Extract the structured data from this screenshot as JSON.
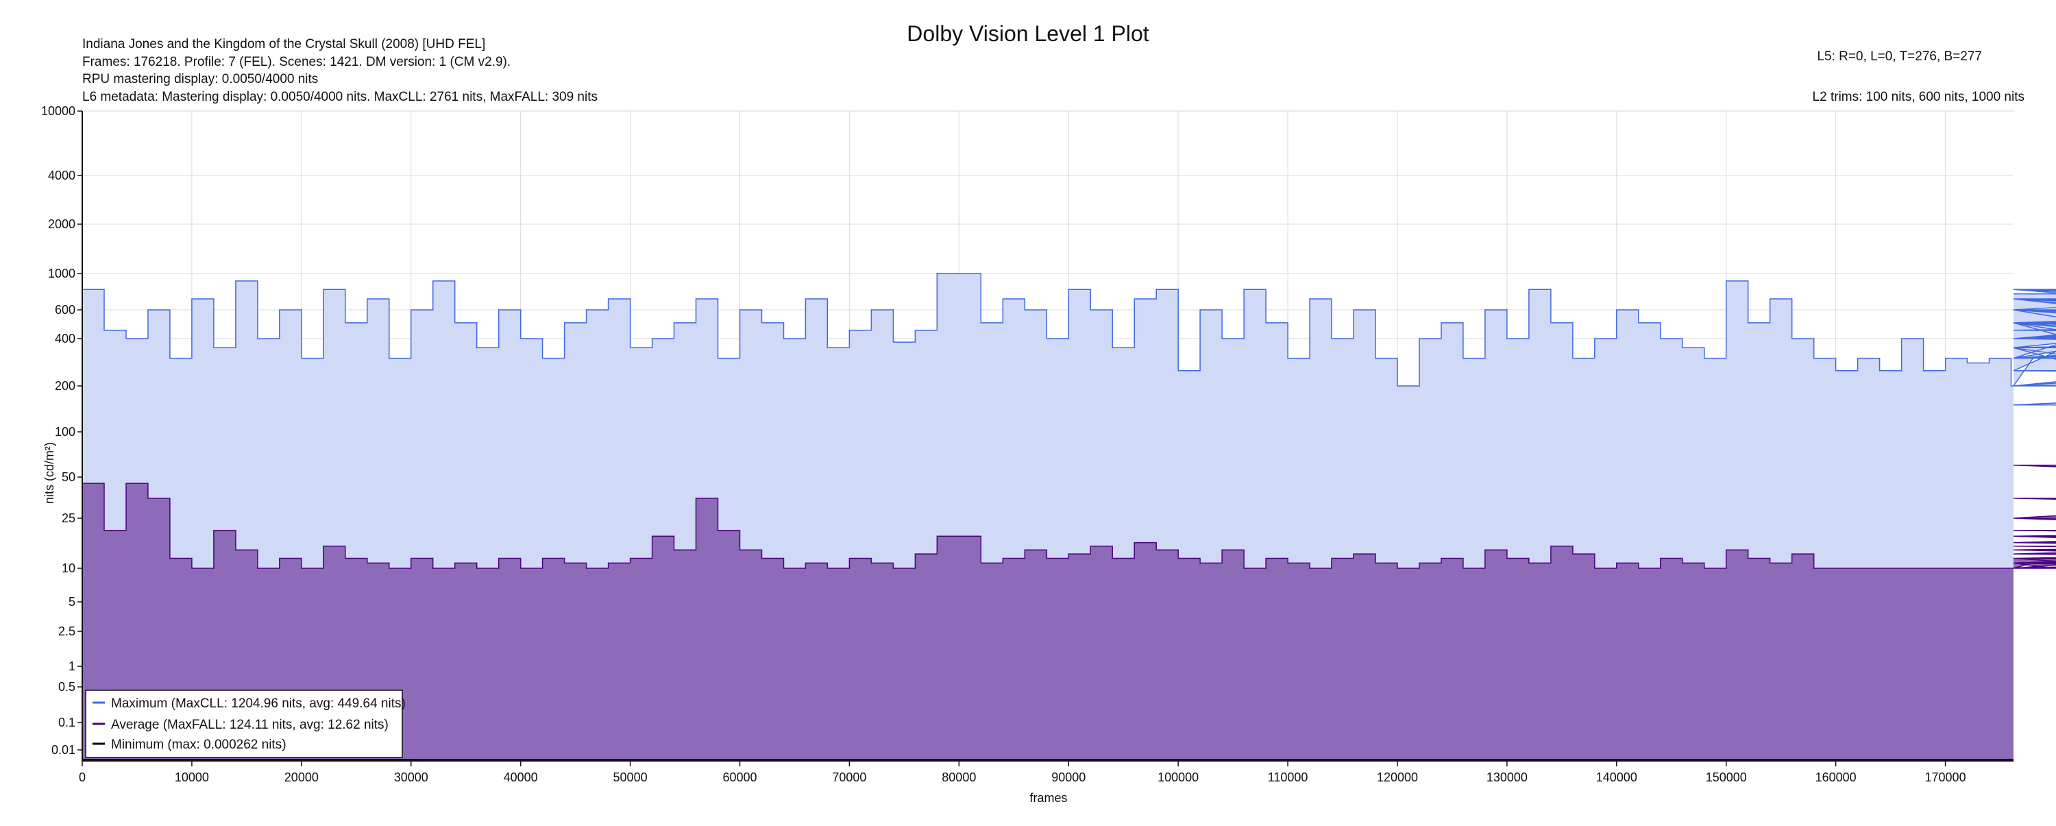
{
  "chart_data": {
    "type": "area",
    "title": "Dolby Vision Level 1 Plot",
    "xlabel": "frames",
    "ylabel": "nits (cd/m²)",
    "header_left": [
      "Indiana Jones and the Kingdom of the Crystal Skull (2008) [UHD FEL]",
      "Frames: 176218. Profile: 7 (FEL). Scenes: 1421. DM version: 1 (CM v2.9).",
      "RPU mastering display: 0.0050/4000 nits",
      "L6 metadata: Mastering display: 0.0050/4000 nits. MaxCLL: 2761 nits, MaxFALL: 309 nits"
    ],
    "header_right": [
      "L5: R=0, L=0, T=276, B=277",
      "L2 trims: 100 nits, 600 nits, 1000 nits"
    ],
    "xlim": [
      0,
      176218
    ],
    "ylim": [
      0.0001,
      10000
    ],
    "yscale": "pq",
    "x_ticks": [
      "0",
      "10000",
      "20000",
      "30000",
      "40000",
      "50000",
      "60000",
      "70000",
      "80000",
      "90000",
      "100000",
      "110000",
      "120000",
      "130000",
      "140000",
      "150000",
      "160000",
      "170000"
    ],
    "y_ticks": [
      "10000",
      "4000",
      "2000",
      "1000",
      "600",
      "400",
      "200",
      "100",
      "50",
      "25",
      "10",
      "5",
      "2.5",
      "1",
      "0.5",
      "0.1",
      "0.01"
    ],
    "grid": true,
    "legend_position": "bottom-left",
    "x_step": 2000,
    "series": [
      {
        "name": "Maximum (MaxCLL: 1204.96 nits, avg: 449.64 nits)",
        "color": "#4169e1",
        "fill": "#d0d9f5",
        "values": [
          800,
          450,
          400,
          600,
          300,
          700,
          350,
          900,
          400,
          600,
          300,
          800,
          500,
          700,
          300,
          600,
          900,
          500,
          350,
          600,
          400,
          300,
          500,
          600,
          700,
          350,
          400,
          500,
          700,
          300,
          600,
          500,
          400,
          700,
          350,
          450,
          600,
          380,
          450,
          1000,
          1000,
          500,
          700,
          600,
          400,
          800,
          600,
          350,
          700,
          800,
          250,
          600,
          400,
          800,
          500,
          300,
          700,
          400,
          600,
          300,
          200,
          400,
          500,
          300,
          600,
          400,
          800,
          500,
          300,
          400,
          600,
          500,
          400,
          350,
          300,
          900,
          500,
          700,
          400,
          300,
          250,
          300,
          250,
          400,
          250,
          300,
          280,
          300,
          200,
          300,
          300,
          350,
          250,
          500,
          300,
          600,
          400,
          500,
          300,
          350,
          200,
          300,
          400,
          500,
          350,
          600,
          800,
          500,
          400,
          700,
          600,
          400,
          700,
          300,
          500,
          600,
          400,
          700,
          300,
          500,
          200,
          400,
          600,
          300,
          500,
          700,
          400,
          600,
          350,
          500,
          700,
          400,
          500,
          600,
          400,
          500,
          800,
          600,
          450,
          500,
          600,
          400,
          300,
          500,
          450,
          400,
          600,
          500,
          400,
          600,
          150,
          150,
          400,
          350,
          500,
          400,
          450,
          600,
          500,
          400,
          800,
          800,
          250,
          200,
          300,
          700,
          500,
          700,
          750,
          750,
          750,
          750,
          750,
          750
        ]
      },
      {
        "name": "Average (MaxFALL: 124.11 nits, avg: 12.62 nits)",
        "color": "#4b0082",
        "fill": "#8e6bb8",
        "values": [
          45,
          20,
          45,
          35,
          12,
          10,
          20,
          14,
          10,
          12,
          10,
          15,
          12,
          11,
          10,
          12,
          10,
          11,
          10,
          12,
          10,
          12,
          11,
          10,
          11,
          12,
          18,
          14,
          35,
          20,
          14,
          12,
          10,
          11,
          10,
          12,
          11,
          10,
          13,
          18,
          18,
          11,
          12,
          14,
          12,
          13,
          15,
          12,
          16,
          14,
          12,
          11,
          14,
          10,
          12,
          11,
          10,
          12,
          13,
          11,
          10,
          11,
          12,
          10,
          14,
          12,
          11,
          15,
          13,
          10,
          11,
          10,
          12,
          11,
          10,
          14,
          12,
          11,
          13,
          10,
          10,
          10,
          10,
          10,
          10,
          10,
          10,
          10,
          10,
          11,
          10,
          10,
          10,
          10,
          12,
          10,
          10,
          11,
          10,
          10,
          10,
          10,
          11,
          10,
          12,
          11,
          13,
          12,
          11,
          14,
          13,
          12,
          14,
          11,
          16,
          14,
          13,
          18,
          12,
          14,
          11,
          13,
          12,
          11,
          12,
          12,
          14,
          16,
          25,
          60,
          35,
          25,
          14,
          11,
          13,
          12,
          15,
          12,
          14,
          18,
          25,
          12,
          11,
          10,
          12,
          11,
          10,
          11,
          10,
          11,
          10,
          10,
          10,
          11,
          10,
          10,
          11,
          10,
          12,
          14,
          20,
          14,
          12,
          16,
          18,
          14,
          12,
          12,
          12,
          12,
          12,
          12,
          12,
          12
        ]
      },
      {
        "name": "Minimum (max: 0.000262 nits)",
        "color": "#000000",
        "fill": "none",
        "values": [
          0.0001
        ]
      }
    ]
  }
}
